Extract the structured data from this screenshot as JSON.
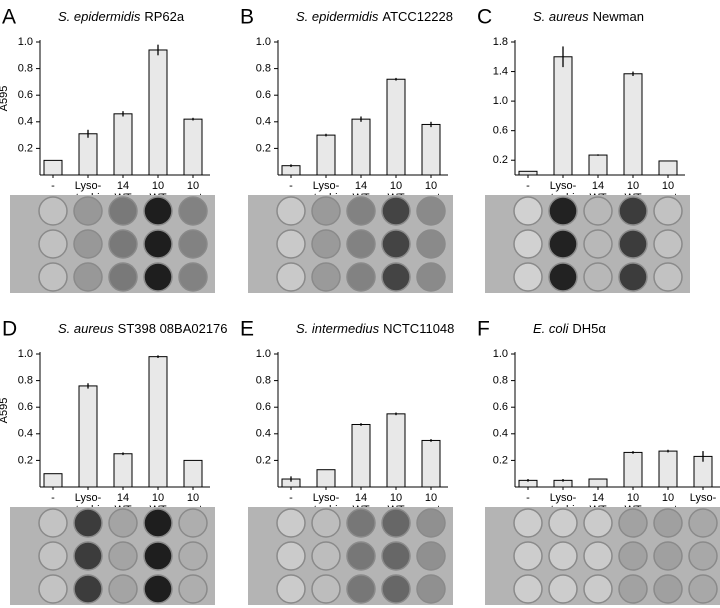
{
  "chart_data": [
    {
      "type": "bar",
      "panel_label": "A",
      "title_italic": "S. epidermidis",
      "title_rest": "RP62a",
      "ylabel": "A595",
      "categories": [
        [
          "-"
        ],
        [
          "Lyso-",
          "staphin"
        ],
        [
          "14",
          "WT"
        ],
        [
          "10",
          "WT"
        ],
        [
          "10",
          "mut"
        ]
      ],
      "values": [
        0.11,
        0.31,
        0.46,
        0.94,
        0.42
      ],
      "errors": [
        0,
        0.03,
        0.02,
        0.04,
        0.01
      ],
      "ylim": [
        0,
        1
      ],
      "yticks": [
        0.2,
        0.4,
        0.6,
        0.8,
        {
          "value": 1,
          "label": "1.0"
        }
      ],
      "color": "#e8e8e8"
    },
    {
      "type": "bar",
      "panel_label": "B",
      "title_italic": "S. epidermidis",
      "title_rest": "ATCC12228",
      "categories": [
        [
          "-"
        ],
        [
          "Lyso-",
          "staphin"
        ],
        [
          "14",
          "WT"
        ],
        [
          "10",
          "WT"
        ],
        [
          "10",
          "mut"
        ]
      ],
      "values": [
        0.07,
        0.3,
        0.42,
        0.72,
        0.38
      ],
      "errors": [
        0.01,
        0.01,
        0.02,
        0.01,
        0.02
      ],
      "ylim": [
        0,
        1
      ],
      "yticks": [
        0.2,
        0.4,
        0.6,
        0.8,
        {
          "value": 1,
          "label": "1.0"
        }
      ],
      "color": "#e8e8e8"
    },
    {
      "type": "bar",
      "panel_label": "C",
      "title_italic": "S. aureus",
      "title_rest": "Newman",
      "categories": [
        [
          "-"
        ],
        [
          "Lyso-",
          "staphin"
        ],
        [
          "14",
          "WT"
        ],
        [
          "10",
          "WT"
        ],
        [
          "10",
          "mut"
        ]
      ],
      "values": [
        0.05,
        1.6,
        0.27,
        1.37,
        0.19
      ],
      "errors": [
        0,
        0.14,
        0.01,
        0.03,
        0
      ],
      "ylim": [
        0,
        1.8
      ],
      "yticks": [
        0.2,
        0.6,
        {
          "value": 1,
          "label": "1.0"
        },
        1.4,
        1.8
      ],
      "color": "#e8e8e8"
    },
    {
      "type": "bar",
      "panel_label": "D",
      "title_italic": "S. aureus",
      "title_rest": "ST398 08BA02176",
      "ylabel": "A595",
      "categories": [
        [
          "-"
        ],
        [
          "Lyso-",
          "staphin"
        ],
        [
          "14",
          "WT"
        ],
        [
          "10",
          "WT"
        ],
        [
          "10",
          "mut"
        ]
      ],
      "values": [
        0.1,
        0.76,
        0.25,
        0.98,
        0.2
      ],
      "errors": [
        0,
        0.02,
        0.01,
        0.01,
        0
      ],
      "ylim": [
        0,
        1
      ],
      "yticks": [
        0.2,
        0.4,
        0.6,
        0.8,
        {
          "value": 1,
          "label": "1.0"
        }
      ],
      "color": "#e8e8e8"
    },
    {
      "type": "bar",
      "panel_label": "E",
      "title_italic": "S. intermedius",
      "title_rest": "NCTC11048",
      "categories": [
        [
          "-"
        ],
        [
          "Lyso-",
          "staphin"
        ],
        [
          "14",
          "WT"
        ],
        [
          "10",
          "WT"
        ],
        [
          "10",
          "mut"
        ]
      ],
      "values": [
        0.06,
        0.13,
        0.47,
        0.55,
        0.35
      ],
      "errors": [
        0.02,
        0,
        0.01,
        0.01,
        0.01
      ],
      "ylim": [
        0,
        1
      ],
      "yticks": [
        0.2,
        0.4,
        0.6,
        0.8,
        {
          "value": 1,
          "label": "1.0"
        }
      ],
      "color": "#e8e8e8"
    },
    {
      "type": "bar",
      "panel_label": "F",
      "title_italic": "E. coli",
      "title_rest": "DH5α",
      "categories": [
        [
          "-"
        ],
        [
          "Lyso-",
          "staphin"
        ],
        [
          "14",
          "WT"
        ],
        [
          "10",
          "WT"
        ],
        [
          "10",
          "mut"
        ],
        [
          "Lyso-",
          "zyme"
        ]
      ],
      "values": [
        0.05,
        0.05,
        0.06,
        0.26,
        0.27,
        0.23
      ],
      "errors": [
        0.01,
        0.01,
        0,
        0.01,
        0.01,
        0.04
      ],
      "ylim": [
        0,
        1
      ],
      "yticks": [
        0.2,
        0.4,
        0.6,
        0.8,
        {
          "value": 1,
          "label": "1.0"
        }
      ],
      "color": "#e8e8e8"
    }
  ]
}
